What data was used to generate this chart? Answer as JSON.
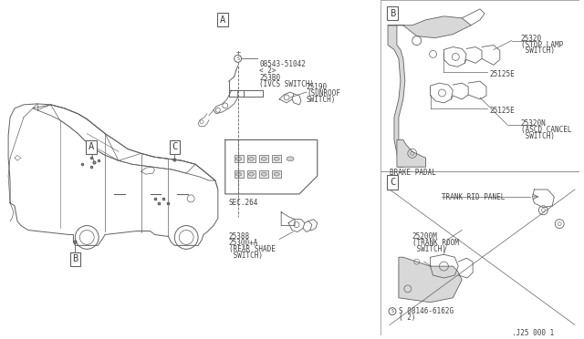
{
  "background_color": "#ffffff",
  "line_color": "#606060",
  "text_color": "#404040",
  "font_size": 5.5,
  "font_size_section": 7.5,
  "part_number": ".J25 000 1",
  "labels": {
    "screw_A": "S",
    "screw_A_num": "08543-51042",
    "screw_A_qty": "< 2>",
    "part_253B0_1": "253B0",
    "part_253B0_2": "(IVCS SWITCH)",
    "part_25190_1": "25190",
    "part_25190_2": "(SUNROOF",
    "part_25190_3": "SWITCH)",
    "sec264": "SEC.264",
    "part_25388_1": "25388",
    "part_25388_2": "25300+A",
    "part_25388_3": "(REAR SHADE",
    "part_25388_4": " SWITCH)",
    "part_25320_1": "25320",
    "part_25320_2": "(STOP LAMP",
    "part_25320_3": " SWITCH)",
    "part_25125E_top": "25125E",
    "part_25125E_bot": "25125E",
    "brake_padal": "BRAKE PADAL",
    "part_25320N_1": "25320N",
    "part_25320N_2": "(ASCD CANCEL",
    "part_25320N_3": " SWITCH)",
    "trank_rid": "TRANK RID PANEL",
    "part_25200M_1": "25200M",
    "part_25200M_2": "(TRANK ROOM",
    "part_25200M_3": " SWITCH)",
    "screw_C_num": "S 08146-6162G",
    "screw_C_qty": "( 2)"
  }
}
